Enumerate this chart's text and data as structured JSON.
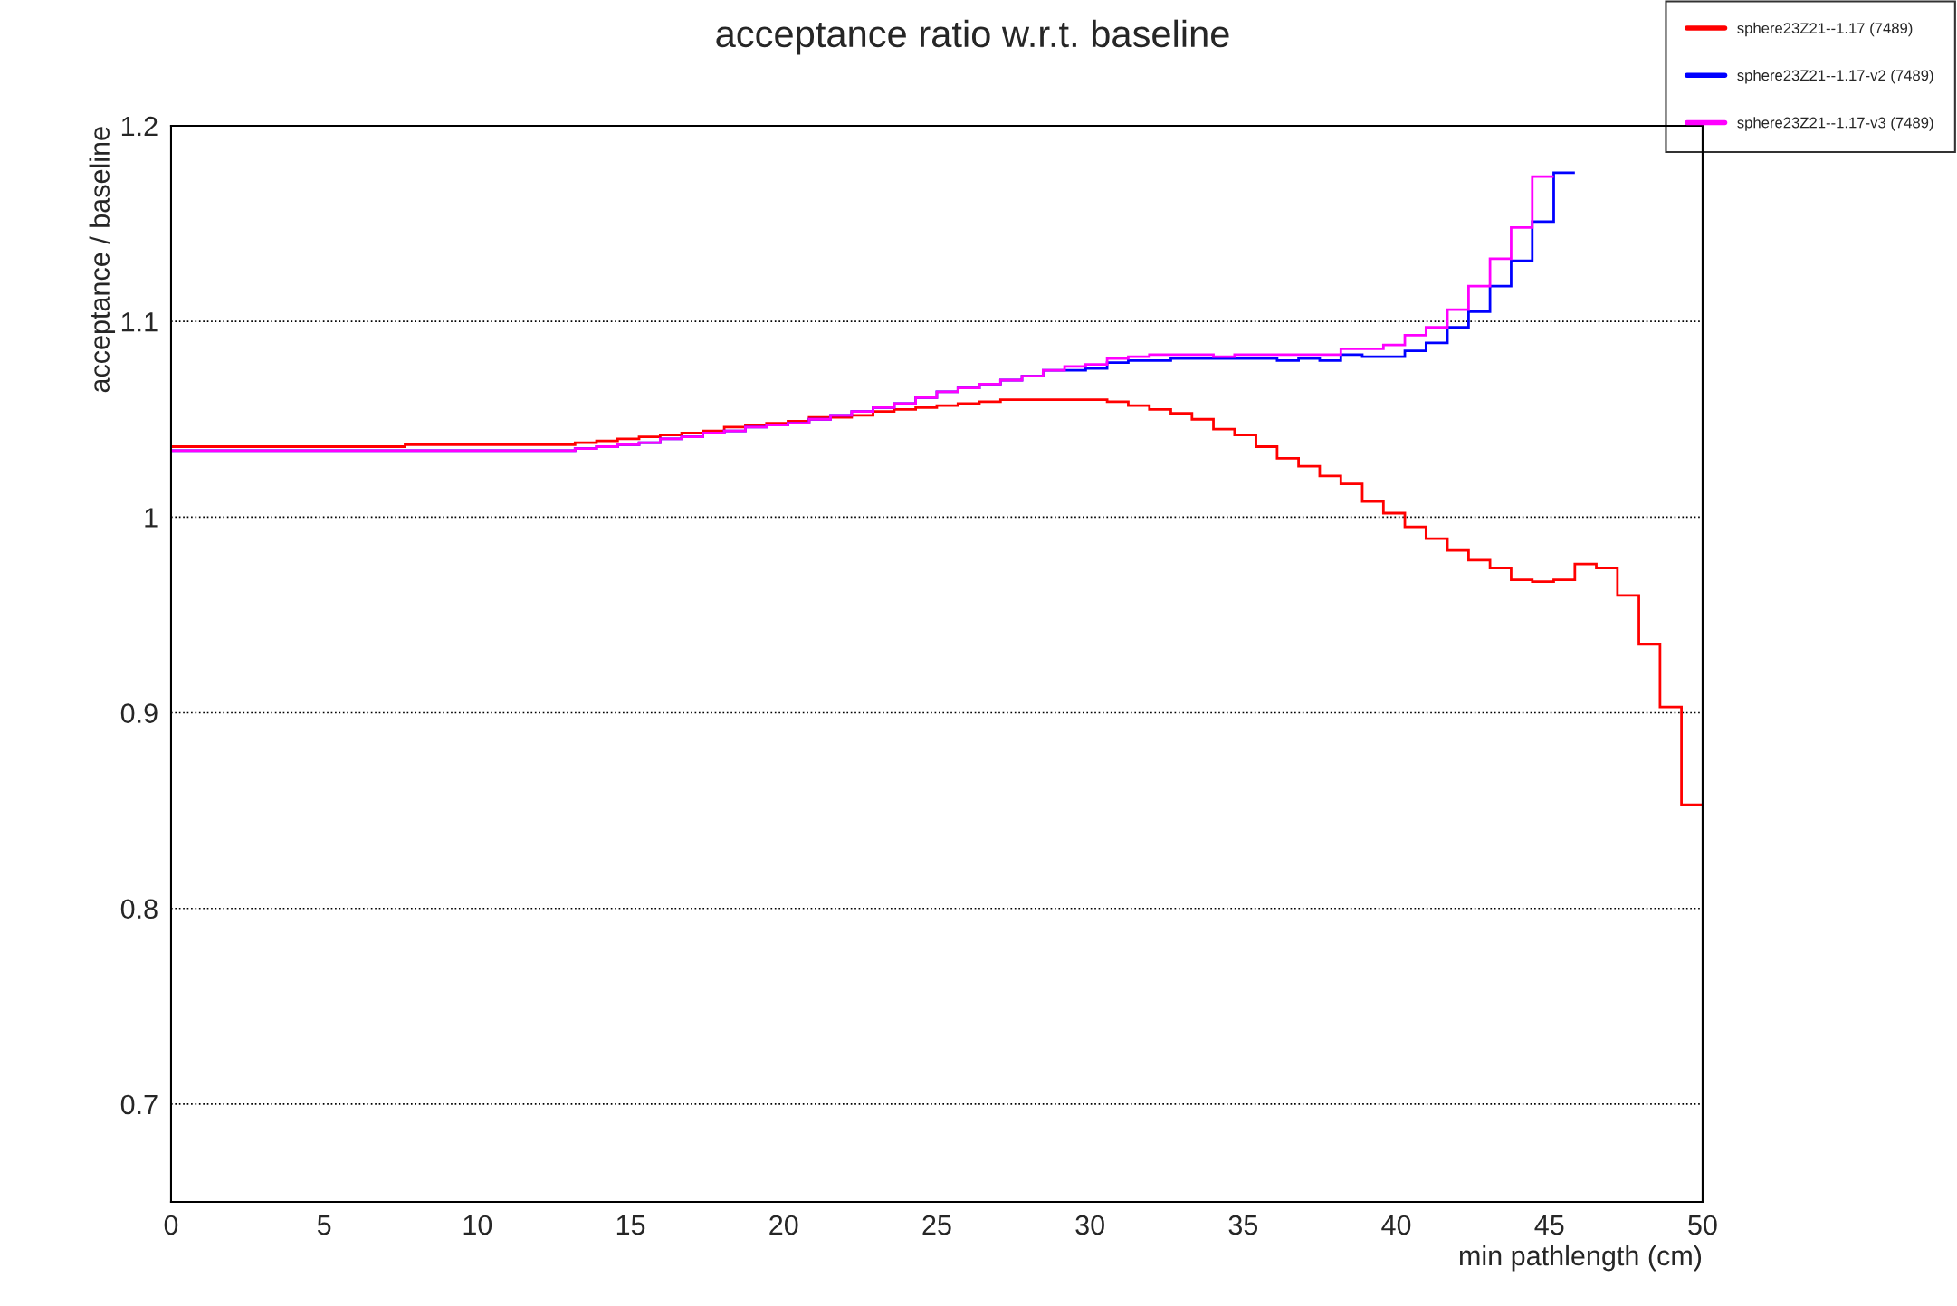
{
  "chart_data": {
    "type": "histogram",
    "title": "acceptance ratio w.r.t. baseline",
    "xlabel": "min pathlength (cm)",
    "ylabel": "acceptance / baseline",
    "bins": [
      0,
      0.69,
      1.39,
      2.08,
      2.78,
      3.47,
      4.17,
      4.86,
      5.56,
      6.25,
      6.94,
      7.64,
      8.33,
      9.03,
      9.72,
      10.42,
      11.11,
      11.81,
      12.5,
      13.19,
      13.89,
      14.58,
      15.28,
      15.97,
      16.67,
      17.36,
      18.06,
      18.75,
      19.44,
      20.14,
      20.83,
      21.53,
      22.22,
      22.92,
      23.61,
      24.31,
      25,
      25.69,
      26.39,
      27.08,
      27.78,
      28.47,
      29.17,
      29.86,
      30.56,
      31.25,
      31.94,
      32.64,
      33.33,
      34.03,
      34.72,
      35.42,
      36.11,
      36.81,
      37.5,
      38.19,
      38.89,
      39.58,
      40.28,
      40.97,
      41.67,
      42.36,
      43.06,
      43.75,
      44.44,
      45.14,
      45.83,
      46.53,
      47.22,
      47.92,
      48.61,
      49.31,
      50
    ],
    "series": [
      {
        "name": "sphere23Z21--1.17 (7489)",
        "color": "#ff0000",
        "values": [
          1.036,
          1.036,
          1.036,
          1.036,
          1.036,
          1.036,
          1.036,
          1.036,
          1.036,
          1.036,
          1.036,
          1.037,
          1.037,
          1.037,
          1.037,
          1.037,
          1.037,
          1.037,
          1.037,
          1.038,
          1.039,
          1.04,
          1.041,
          1.042,
          1.043,
          1.044,
          1.046,
          1.047,
          1.048,
          1.049,
          1.051,
          1.051,
          1.052,
          1.054,
          1.055,
          1.056,
          1.057,
          1.058,
          1.059,
          1.06,
          1.06,
          1.06,
          1.06,
          1.06,
          1.059,
          1.057,
          1.055,
          1.053,
          1.05,
          1.045,
          1.042,
          1.036,
          1.03,
          1.026,
          1.021,
          1.017,
          1.008,
          1.002,
          0.995,
          0.989,
          0.983,
          0.978,
          0.974,
          0.968,
          0.967,
          0.968,
          0.976,
          0.974,
          0.96,
          0.935,
          0.903,
          0.853
        ]
      },
      {
        "name": "sphere23Z21--1.17-v2 (7489)",
        "color": "#0000ff",
        "values": [
          1.034,
          1.034,
          1.034,
          1.034,
          1.034,
          1.034,
          1.034,
          1.034,
          1.034,
          1.034,
          1.034,
          1.034,
          1.034,
          1.034,
          1.034,
          1.034,
          1.034,
          1.034,
          1.034,
          1.035,
          1.036,
          1.037,
          1.038,
          1.04,
          1.041,
          1.043,
          1.044,
          1.046,
          1.047,
          1.048,
          1.05,
          1.052,
          1.054,
          1.056,
          1.058,
          1.061,
          1.064,
          1.066,
          1.068,
          1.07,
          1.072,
          1.075,
          1.075,
          1.076,
          1.079,
          1.08,
          1.08,
          1.081,
          1.081,
          1.081,
          1.081,
          1.081,
          1.08,
          1.081,
          1.08,
          1.083,
          1.082,
          1.082,
          1.085,
          1.089,
          1.097,
          1.105,
          1.118,
          1.131,
          1.151,
          1.176
        ],
        "bins": [
          0,
          0.69,
          1.39,
          2.08,
          2.78,
          3.47,
          4.17,
          4.86,
          5.56,
          6.25,
          6.94,
          7.64,
          8.33,
          9.03,
          9.72,
          10.42,
          11.11,
          11.81,
          12.5,
          13.19,
          13.89,
          14.58,
          15.28,
          15.97,
          16.67,
          17.36,
          18.06,
          18.75,
          19.44,
          20.14,
          20.83,
          21.53,
          22.22,
          22.92,
          23.61,
          24.31,
          25,
          25.69,
          26.39,
          27.08,
          27.78,
          28.47,
          29.17,
          29.86,
          30.56,
          31.25,
          31.94,
          32.64,
          33.33,
          34.03,
          34.72,
          35.42,
          36.11,
          36.81,
          37.5,
          38.19,
          38.89,
          39.58,
          40.28,
          40.97,
          41.67,
          42.36,
          43.06,
          43.75,
          44.44,
          45.14,
          45.83
        ]
      },
      {
        "name": "sphere23Z21--1.17-v3 (7489)",
        "color": "#ff00ff",
        "values": [
          1.034,
          1.034,
          1.034,
          1.034,
          1.034,
          1.034,
          1.034,
          1.034,
          1.034,
          1.034,
          1.034,
          1.034,
          1.034,
          1.034,
          1.034,
          1.034,
          1.034,
          1.034,
          1.034,
          1.035,
          1.036,
          1.037,
          1.038,
          1.04,
          1.041,
          1.043,
          1.044,
          1.046,
          1.047,
          1.048,
          1.05,
          1.052,
          1.054,
          1.056,
          1.058,
          1.061,
          1.064,
          1.066,
          1.068,
          1.07,
          1.072,
          1.075,
          1.077,
          1.078,
          1.081,
          1.082,
          1.083,
          1.083,
          1.083,
          1.082,
          1.083,
          1.083,
          1.083,
          1.083,
          1.083,
          1.086,
          1.086,
          1.088,
          1.093,
          1.097,
          1.106,
          1.118,
          1.132,
          1.148,
          1.174
        ],
        "bins": [
          0,
          0.69,
          1.39,
          2.08,
          2.78,
          3.47,
          4.17,
          4.86,
          5.56,
          6.25,
          6.94,
          7.64,
          8.33,
          9.03,
          9.72,
          10.42,
          11.11,
          11.81,
          12.5,
          13.19,
          13.89,
          14.58,
          15.28,
          15.97,
          16.67,
          17.36,
          18.06,
          18.75,
          19.44,
          20.14,
          20.83,
          21.53,
          22.22,
          22.92,
          23.61,
          24.31,
          25,
          25.69,
          26.39,
          27.08,
          27.78,
          28.47,
          29.17,
          29.86,
          30.56,
          31.25,
          31.94,
          32.64,
          33.33,
          34.03,
          34.72,
          35.42,
          36.11,
          36.81,
          37.5,
          38.19,
          38.89,
          39.58,
          40.28,
          40.97,
          41.67,
          42.36,
          43.06,
          43.75,
          44.44,
          45.14
        ]
      }
    ],
    "xlim": [
      0,
      50
    ],
    "xticks": [
      0,
      5,
      10,
      15,
      20,
      25,
      30,
      35,
      40,
      45,
      50
    ],
    "ylim": [
      0.65,
      1.2
    ],
    "yticks": [
      0.7,
      0.8,
      0.9,
      1,
      1.1,
      1.2
    ],
    "grid": "y",
    "legend": "top right",
    "line_style": "solid"
  }
}
